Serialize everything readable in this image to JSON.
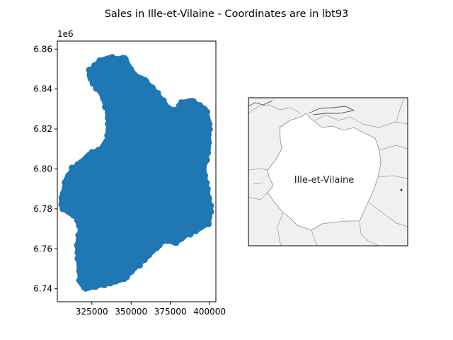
{
  "figure": {
    "title": "Sales in Ille-et-Vilaine - Coordinates are in lbt93"
  },
  "chart_data": [
    {
      "type": "scatter",
      "title": "",
      "xlabel": "",
      "ylabel": "",
      "y_offset_label": "1e6",
      "xlim": [
        303000,
        404000
      ],
      "ylim": [
        6733500,
        6864000
      ],
      "x_ticks": [
        325000,
        350000,
        375000,
        400000
      ],
      "y_ticks": [
        6.74,
        6.76,
        6.78,
        6.8,
        6.82,
        6.84,
        6.86
      ],
      "x_tick_labels": [
        "325000",
        "350000",
        "375000",
        "400000"
      ],
      "y_tick_labels": [
        "6.74",
        "6.76",
        "6.78",
        "6.80",
        "6.82",
        "6.84",
        "6.86"
      ],
      "marker_color": "#1f77b4",
      "outline": [
        [
          324000,
          6849000
        ],
        [
          330000,
          6854000
        ],
        [
          336000,
          6855500
        ],
        [
          342000,
          6855000
        ],
        [
          346000,
          6855500
        ],
        [
          348000,
          6852000
        ],
        [
          352000,
          6847000
        ],
        [
          358000,
          6844500
        ],
        [
          365000,
          6839000
        ],
        [
          373000,
          6831000
        ],
        [
          379000,
          6828000
        ],
        [
          382000,
          6833000
        ],
        [
          388000,
          6834000
        ],
        [
          397000,
          6830000
        ],
        [
          399500,
          6823000
        ],
        [
          399000,
          6810000
        ],
        [
          396000,
          6800000
        ],
        [
          398000,
          6790000
        ],
        [
          400500,
          6780000
        ],
        [
          399000,
          6773000
        ],
        [
          393000,
          6770000
        ],
        [
          385000,
          6767000
        ],
        [
          378000,
          6763000
        ],
        [
          372000,
          6765000
        ],
        [
          366000,
          6761000
        ],
        [
          360000,
          6756000
        ],
        [
          353000,
          6751000
        ],
        [
          345000,
          6745000
        ],
        [
          337000,
          6743000
        ],
        [
          327000,
          6741500
        ],
        [
          321000,
          6740000
        ],
        [
          318000,
          6743000
        ],
        [
          317000,
          6752000
        ],
        [
          316000,
          6762000
        ],
        [
          318000,
          6770000
        ],
        [
          315000,
          6776000
        ],
        [
          309000,
          6779000
        ],
        [
          305500,
          6782000
        ],
        [
          307000,
          6788000
        ],
        [
          309000,
          6795000
        ],
        [
          313000,
          6800000
        ],
        [
          318000,
          6803000
        ],
        [
          323000,
          6807000
        ],
        [
          331000,
          6810000
        ],
        [
          335000,
          6815000
        ],
        [
          336000,
          6822000
        ],
        [
          335000,
          6830000
        ],
        [
          331000,
          6838000
        ],
        [
          326000,
          6843000
        ],
        [
          323500,
          6847000
        ]
      ],
      "inner_region": [
        [
          330000,
          6838000
        ],
        [
          345000,
          6842000
        ],
        [
          360000,
          6836000
        ],
        [
          375000,
          6826000
        ],
        [
          388000,
          6825000
        ],
        [
          394000,
          6815000
        ],
        [
          391000,
          6800000
        ],
        [
          394000,
          6785000
        ],
        [
          390000,
          6776000
        ],
        [
          378000,
          6771000
        ],
        [
          365000,
          6767000
        ],
        [
          352000,
          6758000
        ],
        [
          340000,
          6750000
        ],
        [
          326000,
          6748000
        ],
        [
          323000,
          6760000
        ],
        [
          322000,
          6772000
        ],
        [
          314000,
          6783000
        ],
        [
          316000,
          6795000
        ],
        [
          326000,
          6802000
        ],
        [
          338000,
          6808000
        ],
        [
          341000,
          6818000
        ],
        [
          339000,
          6828000
        ]
      ]
    },
    {
      "type": "map",
      "label": "Ille-et-Vilaine",
      "background_color": "#f0f0f0",
      "highlight_color": "#ffffff"
    }
  ]
}
